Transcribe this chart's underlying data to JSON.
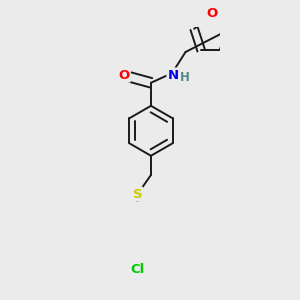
{
  "background_color": "#ebebeb",
  "bond_color": "#1a1a1a",
  "atom_colors": {
    "O": "#ff0000",
    "N": "#0000ee",
    "S": "#cccc00",
    "Cl": "#00cc00",
    "H": "#558888",
    "C": "#1a1a1a"
  },
  "figsize": [
    3.0,
    3.0
  ],
  "dpi": 100
}
